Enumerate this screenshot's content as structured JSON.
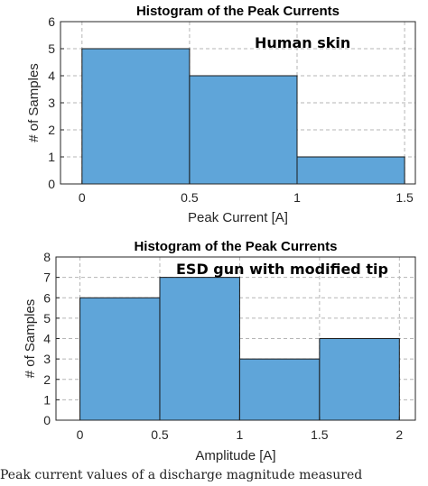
{
  "chart_data": [
    {
      "type": "bar",
      "title": "Histogram of the Peak Currents",
      "annotation": "Human skin",
      "xlabel": "Peak Current [A]",
      "ylabel": "# of Samples",
      "bin_edges": [
        0,
        0.5,
        1,
        1.5
      ],
      "values": [
        5,
        4,
        1
      ],
      "xlim": [
        -0.1,
        1.55
      ],
      "ylim": [
        0,
        6
      ],
      "xticks": [
        0,
        0.5,
        1,
        1.5
      ],
      "xtick_labels": [
        "0",
        "0.5",
        "1",
        "1.5"
      ],
      "yticks": [
        0,
        1,
        2,
        3,
        4,
        5,
        6
      ],
      "ytick_labels": [
        "0",
        "1",
        "2",
        "3",
        "4",
        "5",
        "6"
      ],
      "grid": true,
      "bar_color": "#5fa5d9"
    },
    {
      "type": "bar",
      "title": "Histogram of the Peak Currents",
      "annotation": "ESD gun with modified tip",
      "xlabel": "Amplitude [A]",
      "ylabel": "# of Samples",
      "bin_edges": [
        0,
        0.5,
        1,
        1.5,
        2
      ],
      "values": [
        6,
        7,
        3,
        4
      ],
      "xlim": [
        -0.15,
        2.1
      ],
      "ylim": [
        0,
        8
      ],
      "xticks": [
        0,
        0.5,
        1,
        1.5,
        2
      ],
      "xtick_labels": [
        "0",
        "0.5",
        "1",
        "1.5",
        "2"
      ],
      "yticks": [
        0,
        1,
        2,
        3,
        4,
        5,
        6,
        7,
        8
      ],
      "ytick_labels": [
        "0",
        "1",
        "2",
        "3",
        "4",
        "5",
        "6",
        "7",
        "8"
      ],
      "grid": true,
      "bar_color": "#5fa5d9"
    }
  ],
  "caption": "Peak current values of a discharge magnitude measured"
}
